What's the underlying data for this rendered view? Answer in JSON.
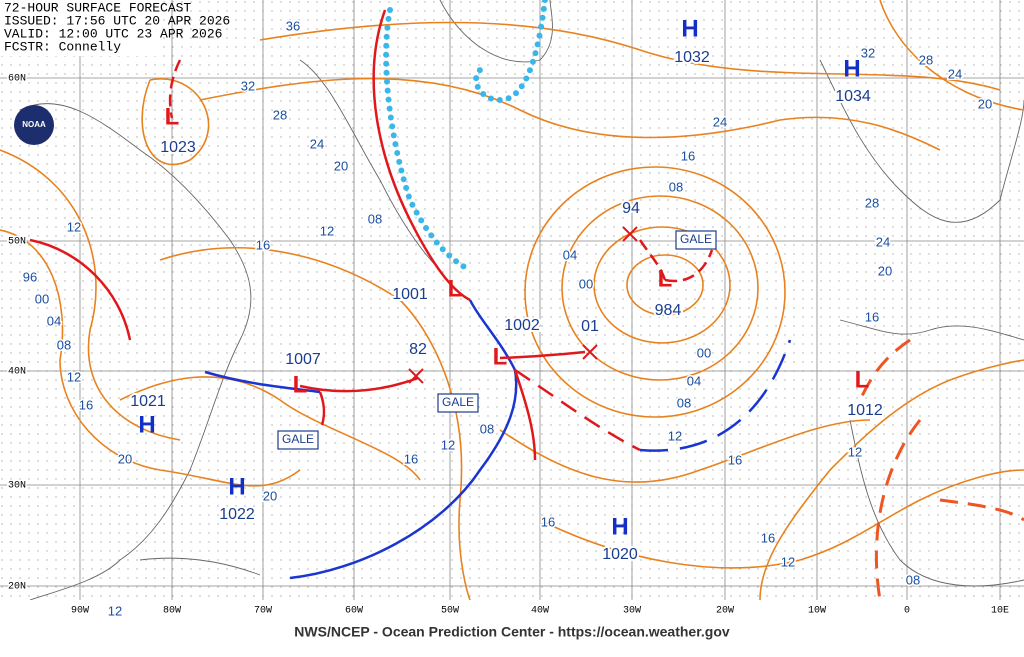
{
  "header": {
    "lines": [
      "72-HOUR SURFACE FORECAST",
      "ISSUED: 17:56 UTC 20 APR 2026",
      "VALID: 12:00 UTC 23 APR 2026",
      "FCSTR: Connelly"
    ]
  },
  "logo": "NOAA",
  "lat_labels": [
    "60N",
    "50N",
    "40N",
    "30N",
    "20N"
  ],
  "lon_labels": [
    "90W",
    "80W",
    "70W",
    "60W",
    "50W",
    "40W",
    "30W",
    "20W",
    "10W",
    "0",
    "10E"
  ],
  "centers": [
    {
      "symbol": "H",
      "pressure": "1032"
    },
    {
      "symbol": "H",
      "pressure": "1034"
    },
    {
      "symbol": "L",
      "pressure": "1023"
    },
    {
      "symbol": "L",
      "pressure": "984"
    },
    {
      "symbol": "L",
      "pressure": "1001"
    },
    {
      "symbol": "L",
      "pressure": "1002"
    },
    {
      "symbol": "L",
      "pressure": "1007"
    },
    {
      "pressure": "94"
    },
    {
      "pressure": "01"
    },
    {
      "pressure": "82"
    },
    {
      "symbol": "H",
      "pressure": "1021"
    },
    {
      "symbol": "H",
      "pressure": "1022"
    },
    {
      "symbol": "H",
      "pressure": "1020"
    },
    {
      "symbol": "L",
      "pressure": "1012"
    }
  ],
  "isobar_labels": [
    "36",
    "32",
    "28",
    "24",
    "20",
    "16",
    "12",
    "08",
    "12",
    "96",
    "00",
    "04",
    "08",
    "12",
    "16",
    "20",
    "20",
    "16",
    "12",
    "08",
    "16",
    "12",
    "08",
    "04",
    "00",
    "00",
    "04",
    "08",
    "16",
    "24",
    "32",
    "28",
    "24",
    "20",
    "28",
    "24",
    "20",
    "16",
    "16",
    "12",
    "16",
    "12",
    "08",
    "12"
  ],
  "gale_labels": [
    "GALE",
    "GALE",
    "GALE"
  ],
  "footer": "NWS/NCEP - Ocean Prediction Center - https://ocean.weather.gov"
}
